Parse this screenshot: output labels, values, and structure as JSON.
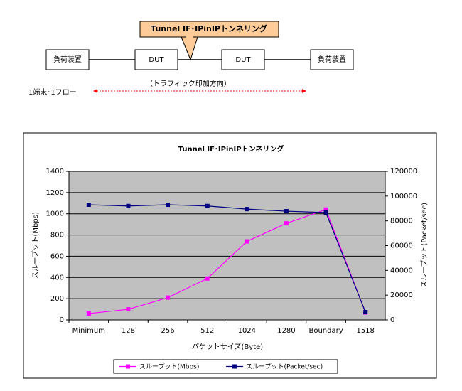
{
  "diagram": {
    "callout": "Tunnel IF･IPinIPトンネリング",
    "nodes": [
      "負荷装置",
      "DUT",
      "DUT",
      "負荷装置"
    ],
    "flow_label": "1端末･1フロー",
    "direction_label": "（トラフィック印加方向）"
  },
  "chart_data": {
    "type": "line",
    "title": "Tunnel IF･IPinIPトンネリング",
    "x_label": "パケットサイズ(Byte)",
    "y_label": "スループット(Mbps)",
    "y2_label": "スループット(Packet/sec)",
    "categories": [
      "Minimum",
      "128",
      "256",
      "512",
      "1024",
      "1280",
      "Boundary",
      "1518"
    ],
    "series": [
      {
        "name": "スループット(Mbps)",
        "color": "#ff00ff",
        "values": [
          60,
          100,
          210,
          390,
          740,
          910,
          1040,
          70
        ]
      },
      {
        "name": "スループット(Packet/sec)",
        "color": "#000080",
        "axis": "y2",
        "values": [
          93000,
          92000,
          93000,
          92000,
          89500,
          87800,
          86700,
          6300
        ]
      }
    ],
    "ylim": [
      0,
      1400
    ],
    "yticks": [
      0,
      200,
      400,
      600,
      800,
      1000,
      1200,
      1400
    ],
    "y2lim": [
      0,
      120000
    ],
    "y2ticks": [
      0,
      20000,
      40000,
      60000,
      80000,
      100000,
      120000
    ],
    "grid": true,
    "legend": "bottom"
  }
}
